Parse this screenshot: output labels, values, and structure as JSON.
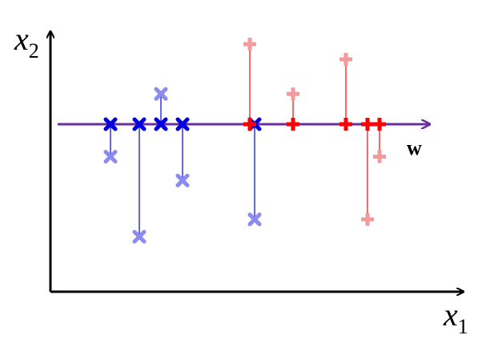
{
  "labels": {
    "x2": "x",
    "x2_sub": "2",
    "x1": "x",
    "x1_sub": "1",
    "w": "w"
  },
  "colors": {
    "axis": "#000000",
    "w_line": "#6a2f9f",
    "class_a": "#0000e0",
    "class_a_faded": "#8c8cf0",
    "class_b": "#ff0000",
    "class_b_faded": "#f59a9a"
  },
  "class_a_points": [
    {
      "t": 1.0,
      "x2": -1.5
    },
    {
      "t": 1.6,
      "x2": -5.2
    },
    {
      "t": 2.05,
      "x2": 1.4
    },
    {
      "t": 2.5,
      "x2": -2.6
    },
    {
      "t": 4.0,
      "x2": -4.4
    }
  ],
  "class_b_points": [
    {
      "t": 3.9,
      "x2": 3.7
    },
    {
      "t": 4.8,
      "x2": 1.4
    },
    {
      "t": 5.9,
      "x2": 3.0
    },
    {
      "t": 6.35,
      "x2": -4.4
    },
    {
      "t": 6.6,
      "x2": -1.5
    }
  ]
}
